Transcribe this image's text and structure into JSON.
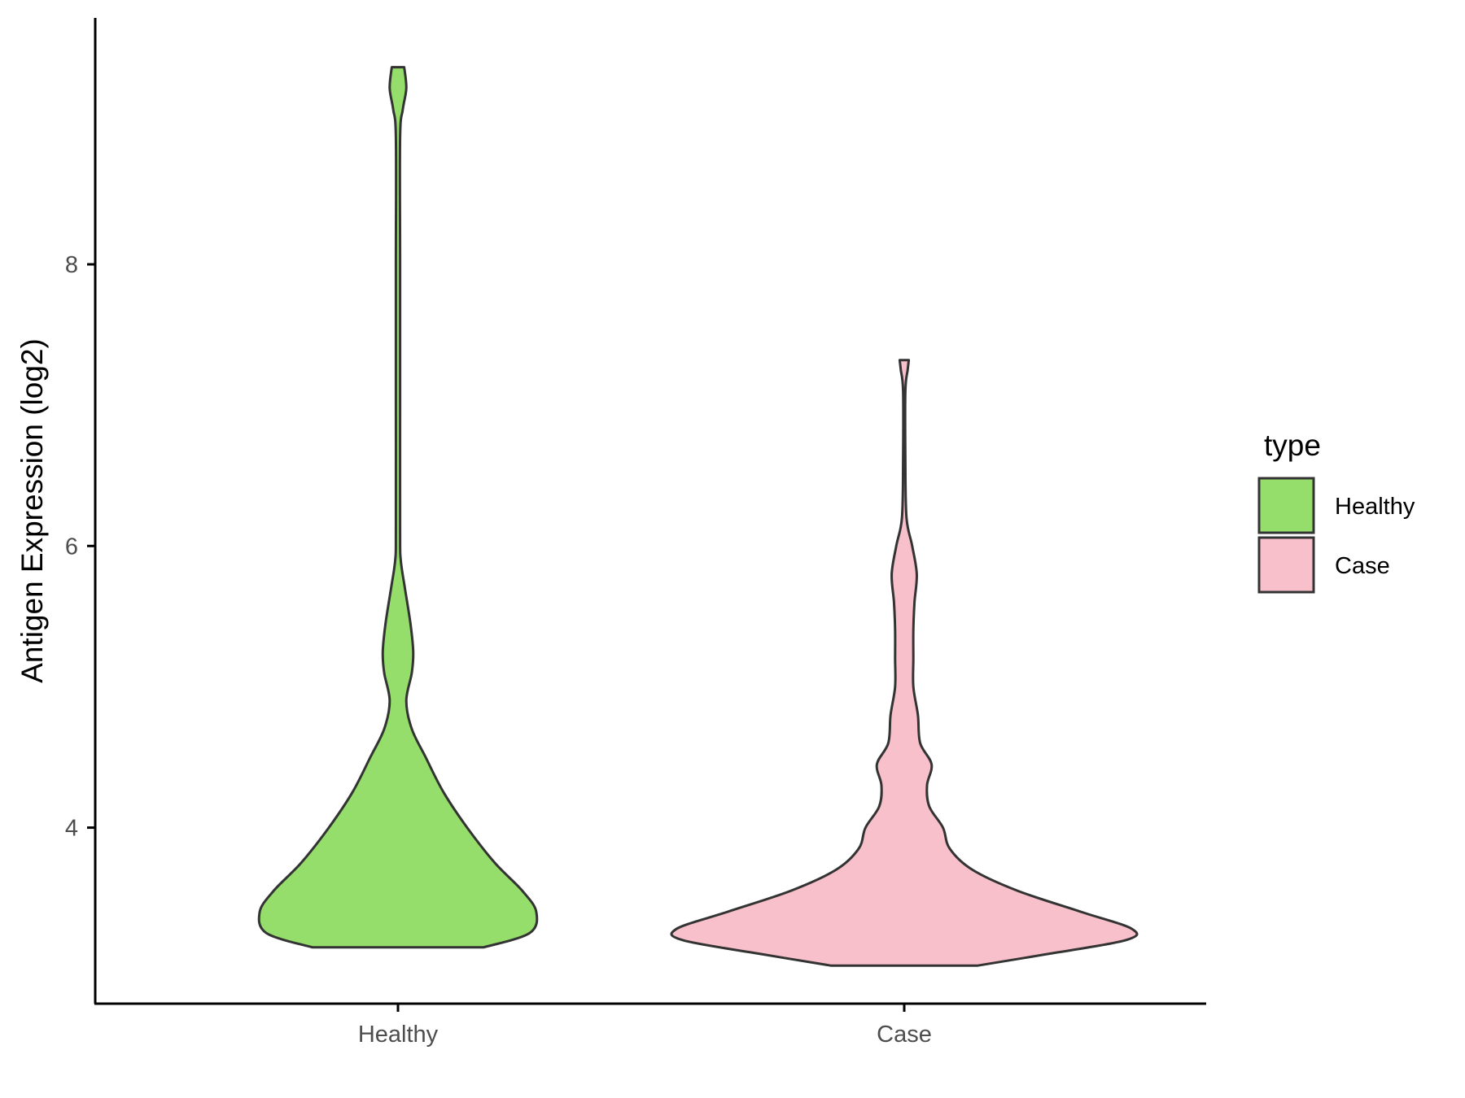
{
  "chart_data": {
    "type": "violin",
    "title": "",
    "xlabel": "",
    "ylabel": "Antigen Expression (log2)",
    "categories": [
      "Healthy",
      "Case"
    ],
    "ylim": [
      2.75,
      9.75
    ],
    "yticks": [
      4,
      6,
      8
    ],
    "grid": false,
    "legend": {
      "title": "type",
      "placement": "right",
      "entries": [
        {
          "label": "Healthy",
          "color": "#95de6b"
        },
        {
          "label": "Case",
          "color": "#f8c0cb"
        }
      ]
    },
    "series": [
      {
        "category": "Healthy",
        "color": "#95de6b",
        "min": 3.15,
        "max": 9.4,
        "profile": [
          [
            3.15,
            0.62
          ],
          [
            3.25,
            0.95
          ],
          [
            3.4,
            1.0
          ],
          [
            3.55,
            0.9
          ],
          [
            3.75,
            0.7
          ],
          [
            4.0,
            0.5
          ],
          [
            4.25,
            0.33
          ],
          [
            4.5,
            0.2
          ],
          [
            4.7,
            0.1
          ],
          [
            4.9,
            0.06
          ],
          [
            5.1,
            0.1
          ],
          [
            5.25,
            0.11
          ],
          [
            5.45,
            0.09
          ],
          [
            5.7,
            0.05
          ],
          [
            5.9,
            0.02
          ],
          [
            6.1,
            0.015
          ],
          [
            7.0,
            0.015
          ],
          [
            8.0,
            0.015
          ],
          [
            8.9,
            0.015
          ],
          [
            9.1,
            0.035
          ],
          [
            9.25,
            0.06
          ],
          [
            9.4,
            0.045
          ]
        ]
      },
      {
        "category": "Case",
        "color": "#f8c0cb",
        "min": 3.02,
        "max": 7.32,
        "profile": [
          [
            3.02,
            0.32
          ],
          [
            3.1,
            0.62
          ],
          [
            3.2,
            0.97
          ],
          [
            3.28,
            1.0
          ],
          [
            3.4,
            0.78
          ],
          [
            3.55,
            0.5
          ],
          [
            3.7,
            0.3
          ],
          [
            3.85,
            0.2
          ],
          [
            4.0,
            0.17
          ],
          [
            4.15,
            0.11
          ],
          [
            4.3,
            0.1
          ],
          [
            4.45,
            0.12
          ],
          [
            4.6,
            0.07
          ],
          [
            4.8,
            0.06
          ],
          [
            5.0,
            0.04
          ],
          [
            5.2,
            0.04
          ],
          [
            5.4,
            0.04
          ],
          [
            5.6,
            0.045
          ],
          [
            5.8,
            0.055
          ],
          [
            6.0,
            0.035
          ],
          [
            6.2,
            0.01
          ],
          [
            6.6,
            0.005
          ],
          [
            7.1,
            0.005
          ],
          [
            7.25,
            0.015
          ],
          [
            7.32,
            0.02
          ]
        ]
      }
    ]
  }
}
